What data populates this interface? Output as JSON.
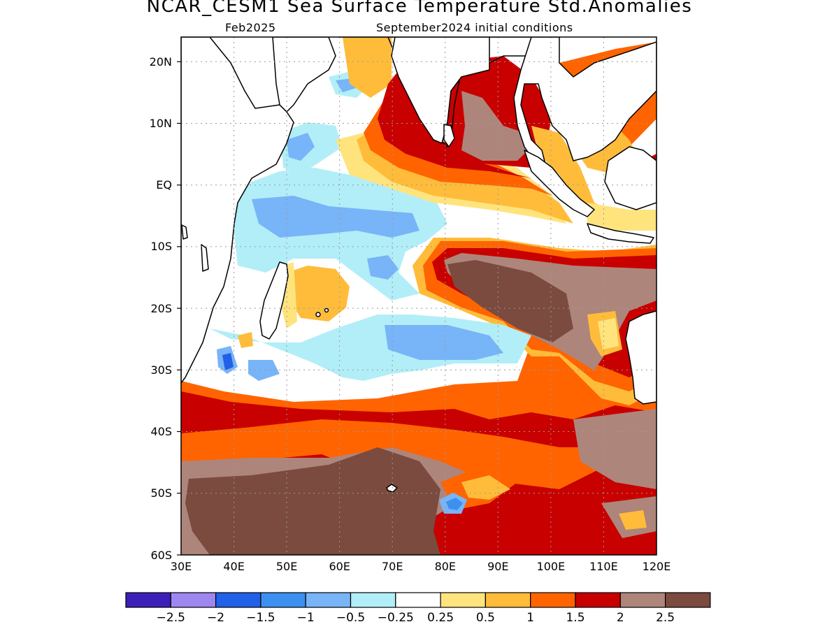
{
  "header": {
    "title": "NCAR_CESM1 Sea Surface Temperature Std.Anomalies",
    "target_month": "Feb2025",
    "init_conditions": "September2024 initial conditions"
  },
  "map": {
    "region": {
      "lon_range": [
        30,
        120
      ],
      "lat_range": [
        -60,
        24
      ]
    },
    "lat_ticks": [
      {
        "value": 20,
        "label": "20N"
      },
      {
        "value": 10,
        "label": "10N"
      },
      {
        "value": 0,
        "label": "EQ"
      },
      {
        "value": -10,
        "label": "10S"
      },
      {
        "value": -20,
        "label": "20S"
      },
      {
        "value": -30,
        "label": "30S"
      },
      {
        "value": -40,
        "label": "40S"
      },
      {
        "value": -50,
        "label": "50S"
      },
      {
        "value": -60,
        "label": "60S"
      }
    ],
    "lon_ticks": [
      {
        "value": 30,
        "label": "30E"
      },
      {
        "value": 40,
        "label": "40E"
      },
      {
        "value": 50,
        "label": "50E"
      },
      {
        "value": 60,
        "label": "60E"
      },
      {
        "value": 70,
        "label": "70E"
      },
      {
        "value": 80,
        "label": "80E"
      },
      {
        "value": 90,
        "label": "90E"
      },
      {
        "value": 100,
        "label": "100E"
      },
      {
        "value": 110,
        "label": "110E"
      },
      {
        "value": 120,
        "label": "120E"
      }
    ],
    "grid": true,
    "gridline_style": "dotted"
  },
  "colorbar": {
    "colors": [
      "#3b1fb8",
      "#9e86f0",
      "#2160e8",
      "#3c90f0",
      "#78b4f8",
      "#b2eef8",
      "#ffffff",
      "#ffe47e",
      "#ffbc3a",
      "#ff6400",
      "#c80000",
      "#ae857a",
      "#7a4b3e"
    ],
    "labels": [
      "−2.5",
      "−2",
      "−1.5",
      "−1",
      "−0.5",
      "−0.25",
      "0.25",
      "0.5",
      "1",
      "1.5",
      "2",
      "2.5"
    ]
  }
}
